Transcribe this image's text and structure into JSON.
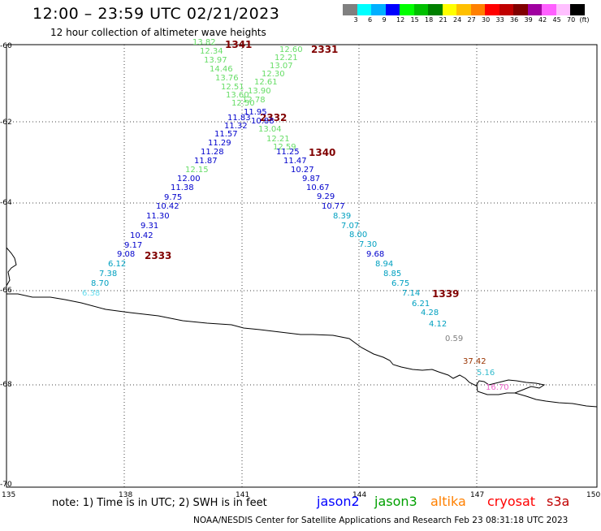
{
  "title": "12:00 – 23:59 UTC 02/21/2023",
  "subtitle": "12 hour collection of altimeter wave heights",
  "note": "note:  1) Time is in UTC;  2) SWH is in feet",
  "credit": "NOAA/NESDIS Center for Satellite Applications and Research     Feb 23 08:31:18 UTC 2023",
  "legend": {
    "unit": "(ft)",
    "labels": [
      "3",
      "6",
      "9",
      "12",
      "15",
      "18",
      "21",
      "24",
      "27",
      "30",
      "33",
      "36",
      "39",
      "42",
      "45",
      "70"
    ],
    "colors": [
      "#808080",
      "#00ffff",
      "#00b0ff",
      "#0000ff",
      "#00ff00",
      "#00c000",
      "#008000",
      "#ffff00",
      "#ffc000",
      "#ff8000",
      "#ff0000",
      "#c00000",
      "#800000",
      "#a000a0",
      "#ff60ff",
      "#ffc0ff",
      "#000000"
    ]
  },
  "satellites": [
    {
      "name": "jason2",
      "color": "#0000ff"
    },
    {
      "name": "jason3",
      "color": "#00a000"
    },
    {
      "name": "altika",
      "color": "#ff8000"
    },
    {
      "name": "cryosat",
      "color": "#ff0000"
    },
    {
      "name": "s3a",
      "color": "#c00000"
    }
  ],
  "axes": {
    "lat_labels": [
      "-60",
      "-62",
      "-64",
      "-66",
      "-68",
      "-70"
    ],
    "lon_labels": [
      "135",
      "138",
      "141",
      "144",
      "147",
      "150"
    ]
  },
  "track_times": [
    "1341",
    "2331",
    "2332",
    "1340",
    "2333",
    "1339"
  ],
  "readings": [
    {
      "v": "13.82",
      "c": "#66dd66"
    },
    {
      "v": "12.34",
      "c": "#66dd66"
    },
    {
      "v": "13.97",
      "c": "#66dd66"
    },
    {
      "v": "14.46",
      "c": "#66dd66"
    },
    {
      "v": "13.76",
      "c": "#66dd66"
    },
    {
      "v": "12.51",
      "c": "#66dd66"
    },
    {
      "v": "13.60",
      "c": "#66dd66"
    },
    {
      "v": "12.50",
      "c": "#66dd66"
    },
    {
      "v": "11.95",
      "c": "#0000cc"
    },
    {
      "v": "11.83",
      "c": "#0000cc"
    },
    {
      "v": "11.32",
      "c": "#0000cc"
    },
    {
      "v": "11.57",
      "c": "#0000cc"
    },
    {
      "v": "11.29",
      "c": "#0000cc"
    },
    {
      "v": "11.28",
      "c": "#0000cc"
    },
    {
      "v": "11.87",
      "c": "#0000cc"
    },
    {
      "v": "12.15",
      "c": "#66dd66"
    },
    {
      "v": "12.00",
      "c": "#0000cc"
    },
    {
      "v": "11.38",
      "c": "#0000cc"
    },
    {
      "v": "9.75",
      "c": "#0000cc"
    },
    {
      "v": "10.42",
      "c": "#0000cc"
    },
    {
      "v": "11.30",
      "c": "#0000cc"
    },
    {
      "v": "9.31",
      "c": "#0000cc"
    },
    {
      "v": "10.42",
      "c": "#0000cc"
    },
    {
      "v": "9.17",
      "c": "#0000cc"
    },
    {
      "v": "9.08",
      "c": "#0000cc"
    },
    {
      "v": "6.12",
      "c": "#00a0c0"
    },
    {
      "v": "7.38",
      "c": "#00a0c0"
    },
    {
      "v": "8.70",
      "c": "#00a0c0"
    },
    {
      "v": "6.38",
      "c": "#66ddee"
    },
    {
      "v": "12.60",
      "c": "#66dd66"
    },
    {
      "v": "12.21",
      "c": "#66dd66"
    },
    {
      "v": "13.07",
      "c": "#66dd66"
    },
    {
      "v": "12.30",
      "c": "#66dd66"
    },
    {
      "v": "12.61",
      "c": "#66dd66"
    },
    {
      "v": "13.90",
      "c": "#66dd66"
    },
    {
      "v": "12.78",
      "c": "#66dd66"
    },
    {
      "v": "10.88",
      "c": "#0000cc"
    },
    {
      "v": "13.04",
      "c": "#66dd66"
    },
    {
      "v": "12.21",
      "c": "#66dd66"
    },
    {
      "v": "12.59",
      "c": "#66dd66"
    },
    {
      "v": "11.25",
      "c": "#0000cc"
    },
    {
      "v": "11.47",
      "c": "#0000cc"
    },
    {
      "v": "10.27",
      "c": "#0000cc"
    },
    {
      "v": "9.87",
      "c": "#0000cc"
    },
    {
      "v": "10.67",
      "c": "#0000cc"
    },
    {
      "v": "9.29",
      "c": "#0000cc"
    },
    {
      "v": "10.77",
      "c": "#0000cc"
    },
    {
      "v": "8.39",
      "c": "#00a0c0"
    },
    {
      "v": "7.07",
      "c": "#00a0c0"
    },
    {
      "v": "8.00",
      "c": "#00a0c0"
    },
    {
      "v": "7.30",
      "c": "#00a0c0"
    },
    {
      "v": "9.68",
      "c": "#0000cc"
    },
    {
      "v": "8.94",
      "c": "#00a0c0"
    },
    {
      "v": "8.85",
      "c": "#00a0c0"
    },
    {
      "v": "6.75",
      "c": "#00a0c0"
    },
    {
      "v": "7.14",
      "c": "#00a0c0"
    },
    {
      "v": "6.21",
      "c": "#00a0c0"
    },
    {
      "v": "4.28",
      "c": "#00a0c0"
    },
    {
      "v": "4.12",
      "c": "#00a0c0"
    },
    {
      "v": "0.59",
      "c": "#808080"
    },
    {
      "v": "37.42",
      "c": "#993300"
    },
    {
      "v": "5.16",
      "c": "#33bbcc"
    },
    {
      "v": "16.70",
      "c": "#ee66cc"
    }
  ]
}
